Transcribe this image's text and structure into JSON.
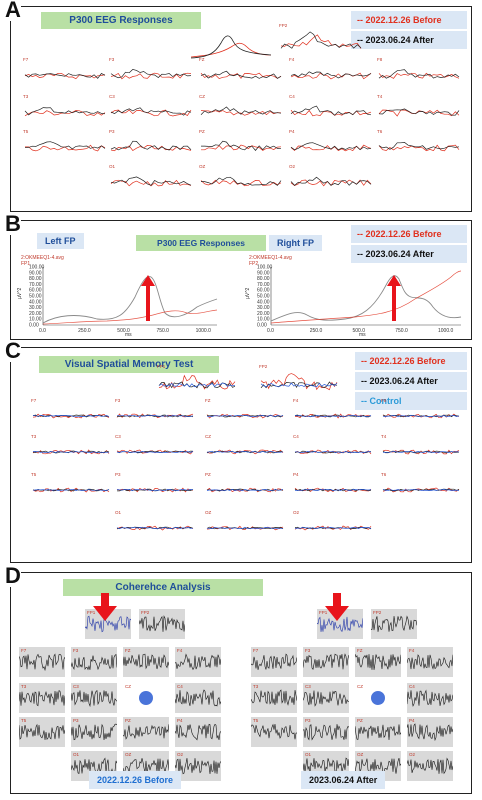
{
  "panel_a": {
    "letter": "A",
    "title": "P300 EEG Responses",
    "legend_before": "-- 2022.12.26 Before",
    "legend_after": "-- 2023.06.24 After",
    "electrodes": [
      "FP2",
      "F7",
      "F3",
      "FZ",
      "F4",
      "F8",
      "T3",
      "C3",
      "CZ",
      "C4",
      "T4",
      "T5",
      "P3",
      "PZ",
      "P4",
      "T6",
      "O1",
      "OZ",
      "O2"
    ]
  },
  "panel_b": {
    "letter": "B",
    "left_label": "Left FP",
    "title": "P300 EEG Responses",
    "right_label": "Right FP",
    "legend_before": "-- 2022.12.26 Before",
    "legend_after": "-- 2023.06.24 After",
    "left_plot": {
      "header": "2:OKMEEQ1-4.avg",
      "channel": "FP1",
      "ylabel": "µV^2",
      "xlabel": "ms",
      "yticks": [
        "100.00",
        "90.00",
        "80.00",
        "70.00",
        "60.00",
        "50.00",
        "40.00",
        "30.00",
        "20.00",
        "10.00",
        "0.00"
      ],
      "xticks": [
        "0.0",
        "250.0",
        "500.0",
        "750.0",
        "1000.0"
      ]
    },
    "right_plot": {
      "header": "2:OKMEEQ1-4.avg",
      "channel": "FP2",
      "ylabel": "µV^2",
      "xlabel": "ms",
      "yticks": [
        "100.00",
        "90.00",
        "80.00",
        "70.00",
        "60.00",
        "50.00",
        "40.00",
        "30.00",
        "20.00",
        "10.00",
        "0.00"
      ],
      "xticks": [
        "0.0",
        "250.0",
        "500.0",
        "750.0",
        "1000.0"
      ]
    }
  },
  "panel_c": {
    "letter": "C",
    "title": "Visual Spatial Memory Test",
    "legend_before": "-- 2022.12.26 Before",
    "legend_after": "-- 2023.06.24 After",
    "legend_control": "-- Control",
    "electrodes": [
      "FP1",
      "FP2",
      "F7",
      "F3",
      "FZ",
      "F4",
      "F8",
      "T3",
      "C3",
      "CZ",
      "C4",
      "T4",
      "T5",
      "P3",
      "PZ",
      "P4",
      "T6",
      "O1",
      "OZ",
      "O2"
    ]
  },
  "panel_d": {
    "letter": "D",
    "title": "Coherehce Analysis",
    "before_label": "2022.12.26 Before",
    "after_label": "2023.06.24 After",
    "tile_labels": [
      "FP1",
      "FP2",
      "F7",
      "F3",
      "FZ",
      "F4",
      "F8",
      "T3",
      "C3",
      "CZ",
      "C4",
      "T4",
      "T5",
      "P3",
      "PZ",
      "P4",
      "T6",
      "O1",
      "OZ",
      "O2"
    ]
  },
  "colors": {
    "before": "#e0301e",
    "after": "#222222",
    "control": "#2a5bd8",
    "title_bg": "#b9e0a5",
    "label_bg": "#dbe7f5",
    "arrow": "#e8141b"
  }
}
